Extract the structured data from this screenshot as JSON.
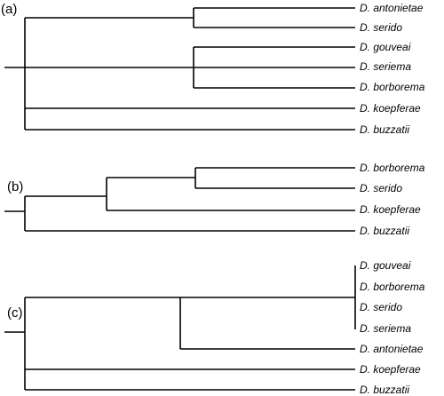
{
  "panels": [
    {
      "label": "(a)",
      "taxa": [
        "D. antonietae",
        "D. serido",
        "D. gouveai",
        "D. seriema",
        "D. borborema",
        "D. koepferae",
        "D. buzzatii"
      ]
    },
    {
      "label": "(b)",
      "taxa": [
        "D. borborema",
        "D. serido",
        "D. koepferae",
        "D. buzzatii"
      ]
    },
    {
      "label": "(c)",
      "taxa": [
        "D. gouveai",
        "D. borborema",
        "D. serido",
        "D. seriema",
        "D. antonietae",
        "D. koepferae",
        "D. buzzatii"
      ]
    }
  ]
}
